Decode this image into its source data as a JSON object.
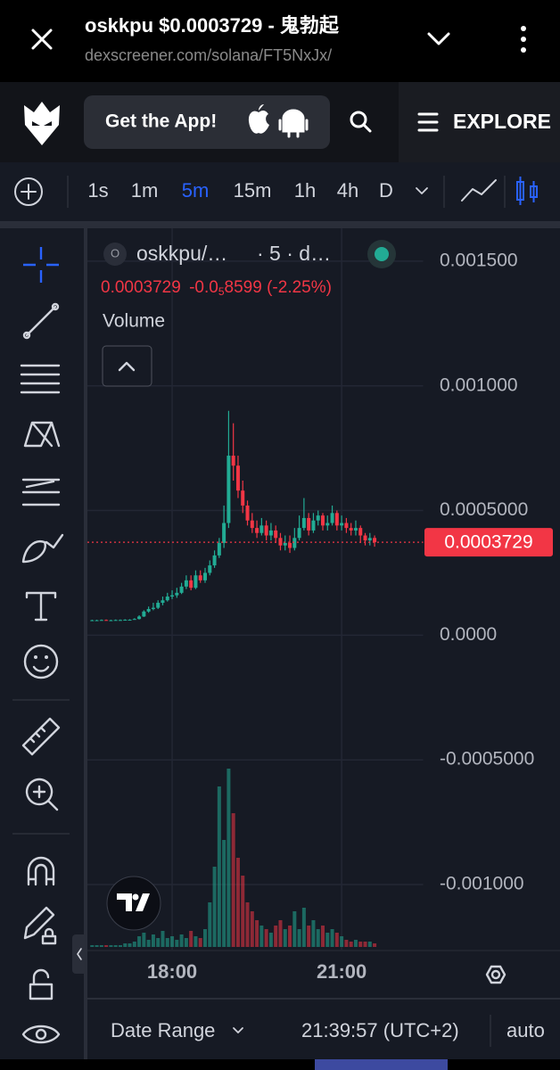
{
  "browser": {
    "title": "oskkpu $0.0003729 - 鬼勃起",
    "url": "dexscreener.com/solana/FT5NxJx/"
  },
  "header": {
    "app_button": "Get the App!",
    "explore": "EXPLORE"
  },
  "toolbar": {
    "intervals": [
      "1s",
      "1m",
      "5m",
      "15m",
      "1h",
      "4h",
      "D"
    ],
    "active_interval": 2
  },
  "chart_data": {
    "type": "candlestick",
    "symbol_icon": "O",
    "symbol": "oskkpu/…",
    "symbol_info": "· 5 · d…",
    "last_price": 0.0003729,
    "change_prefix": "-0.0",
    "change_subscript": "5",
    "change_rest": "8599 (-2.25%)",
    "volume_label": "Volume",
    "up_color": "#22ab94",
    "down_color": "#f23645",
    "xlim": [
      990,
      1347
    ],
    "xticks": [
      {
        "value": 1080,
        "label": "18:00"
      },
      {
        "value": 1260,
        "label": "21:00"
      }
    ],
    "ylim": [
      -0.001261,
      0.001632
    ],
    "yticks": [
      {
        "value": 0.0015,
        "label": "0.001500"
      },
      {
        "value": 0.001,
        "label": "0.001000"
      },
      {
        "value": 0.0005,
        "label": "0.0005000"
      },
      {
        "value": 0,
        "label": "0.0000"
      },
      {
        "value": -0.0005,
        "label": "-0.0005000"
      },
      {
        "value": -0.001,
        "label": "-0.001000"
      }
    ],
    "grid": true,
    "x": [
      995,
      1000,
      1005,
      1010,
      1015,
      1020,
      1025,
      1030,
      1035,
      1040,
      1045,
      1050,
      1055,
      1060,
      1065,
      1070,
      1075,
      1080,
      1085,
      1090,
      1095,
      1100,
      1105,
      1110,
      1115,
      1120,
      1125,
      1130,
      1135,
      1140,
      1145,
      1150,
      1155,
      1160,
      1165,
      1170,
      1175,
      1180,
      1185,
      1190,
      1195,
      1200,
      1205,
      1210,
      1215,
      1220,
      1225,
      1230,
      1235,
      1240,
      1245,
      1250,
      1255,
      1260,
      1265,
      1270,
      1275,
      1280,
      1285,
      1290,
      1295
    ],
    "open": [
      6e-05,
      6e-05,
      6e-05,
      6.1e-05,
      6e-05,
      6e-05,
      6.1e-05,
      6.1e-05,
      6.2e-05,
      6.2e-05,
      6.5e-05,
      7.5e-05,
      9.5e-05,
      0.000105,
      0.00011,
      0.00013,
      0.00014,
      0.000155,
      0.00016,
      0.00017,
      0.000195,
      0.00022,
      0.00019,
      0.00024,
      0.00022,
      0.00025,
      0.00028,
      0.00032,
      0.00037,
      0.00045,
      0.00072,
      0.00068,
      0.00058,
      0.00052,
      0.00046,
      0.00043,
      0.00041,
      0.00044,
      0.0004,
      0.00042,
      0.00039,
      0.00036,
      0.00037,
      0.00035,
      0.00039,
      0.00043,
      0.00047,
      0.00042,
      0.00046,
      0.00048,
      0.00044,
      0.00045,
      0.00049,
      0.00044,
      0.00045,
      0.00043,
      0.00042,
      0.00043,
      0.0004,
      0.00038,
      0.00039
    ],
    "high": [
      6.2e-05,
      6.2e-05,
      6.3e-05,
      6.3e-05,
      6.2e-05,
      6.3e-05,
      6.3e-05,
      6.4e-05,
      6.4e-05,
      6.8e-05,
      8e-05,
      0.0001,
      0.000115,
      0.00013,
      0.00014,
      0.000155,
      0.00017,
      0.00018,
      0.00019,
      0.00021,
      0.00024,
      0.00024,
      0.00026,
      0.00026,
      0.00027,
      0.0003,
      0.00034,
      0.00039,
      0.00052,
      0.0009,
      0.00085,
      0.00072,
      0.00062,
      0.00054,
      0.00049,
      0.00046,
      0.00047,
      0.00046,
      0.00045,
      0.00044,
      0.00041,
      0.0004,
      0.0004,
      0.00043,
      0.00048,
      0.00055,
      0.00049,
      0.00049,
      0.0005,
      0.00049,
      0.00048,
      0.00052,
      0.0005,
      0.00048,
      0.00047,
      0.00045,
      0.00046,
      0.00044,
      0.00041,
      0.00041,
      0.0004
    ],
    "low": [
      5.8e-05,
      5.8e-05,
      5.9e-05,
      5.9e-05,
      5.8e-05,
      5.9e-05,
      5.9e-05,
      6e-05,
      6e-05,
      6.2e-05,
      6.3e-05,
      7.3e-05,
      9e-05,
      0.0001,
      0.000105,
      0.00012,
      0.000135,
      0.000145,
      0.00015,
      0.000165,
      0.000185,
      0.00018,
      0.000185,
      0.00021,
      0.00021,
      0.00024,
      0.00027,
      0.00031,
      0.00035,
      0.00043,
      0.00062,
      0.00055,
      0.00049,
      0.00044,
      0.00041,
      0.00039,
      0.0004,
      0.00038,
      0.00038,
      0.00037,
      0.00034,
      0.00034,
      0.00033,
      0.00034,
      0.00038,
      0.00042,
      0.0004,
      0.00041,
      0.00044,
      0.00042,
      0.00042,
      0.00044,
      0.00042,
      0.00042,
      0.00041,
      0.0004,
      0.0004,
      0.00037,
      0.00036,
      0.00036,
      0.000355
    ],
    "close": [
      6e-05,
      6e-05,
      6.1e-05,
      6e-05,
      6e-05,
      6.1e-05,
      6.1e-05,
      6.2e-05,
      6.2e-05,
      6.5e-05,
      7.5e-05,
      9.5e-05,
      0.000105,
      0.00011,
      0.00013,
      0.00014,
      0.000155,
      0.00016,
      0.00017,
      0.000195,
      0.00022,
      0.00019,
      0.00024,
      0.00022,
      0.00025,
      0.00028,
      0.00032,
      0.00037,
      0.00045,
      0.00072,
      0.00068,
      0.00058,
      0.00052,
      0.00046,
      0.00043,
      0.00041,
      0.00044,
      0.0004,
      0.00042,
      0.00039,
      0.00036,
      0.00037,
      0.00035,
      0.00039,
      0.00043,
      0.00047,
      0.00042,
      0.00046,
      0.00048,
      0.00044,
      0.00045,
      0.00049,
      0.00044,
      0.00045,
      0.00043,
      0.00042,
      0.00043,
      0.0004,
      0.00038,
      0.00039,
      0.0003729
    ],
    "volume": [
      1,
      1,
      1,
      1,
      1,
      1,
      1,
      2,
      2,
      3,
      6,
      8,
      4,
      7,
      5,
      9,
      5,
      6,
      4,
      7,
      5,
      9,
      6,
      5,
      10,
      25,
      45,
      90,
      60,
      100,
      75,
      50,
      40,
      25,
      20,
      15,
      12,
      10,
      8,
      12,
      15,
      10,
      12,
      20,
      10,
      22,
      12,
      15,
      10,
      12,
      8,
      10,
      8,
      6,
      4,
      3,
      4,
      3,
      3,
      3,
      2
    ]
  },
  "footer": {
    "date_range": "Date Range",
    "time": "21:39:57 (UTC+2)",
    "auto": "auto"
  }
}
